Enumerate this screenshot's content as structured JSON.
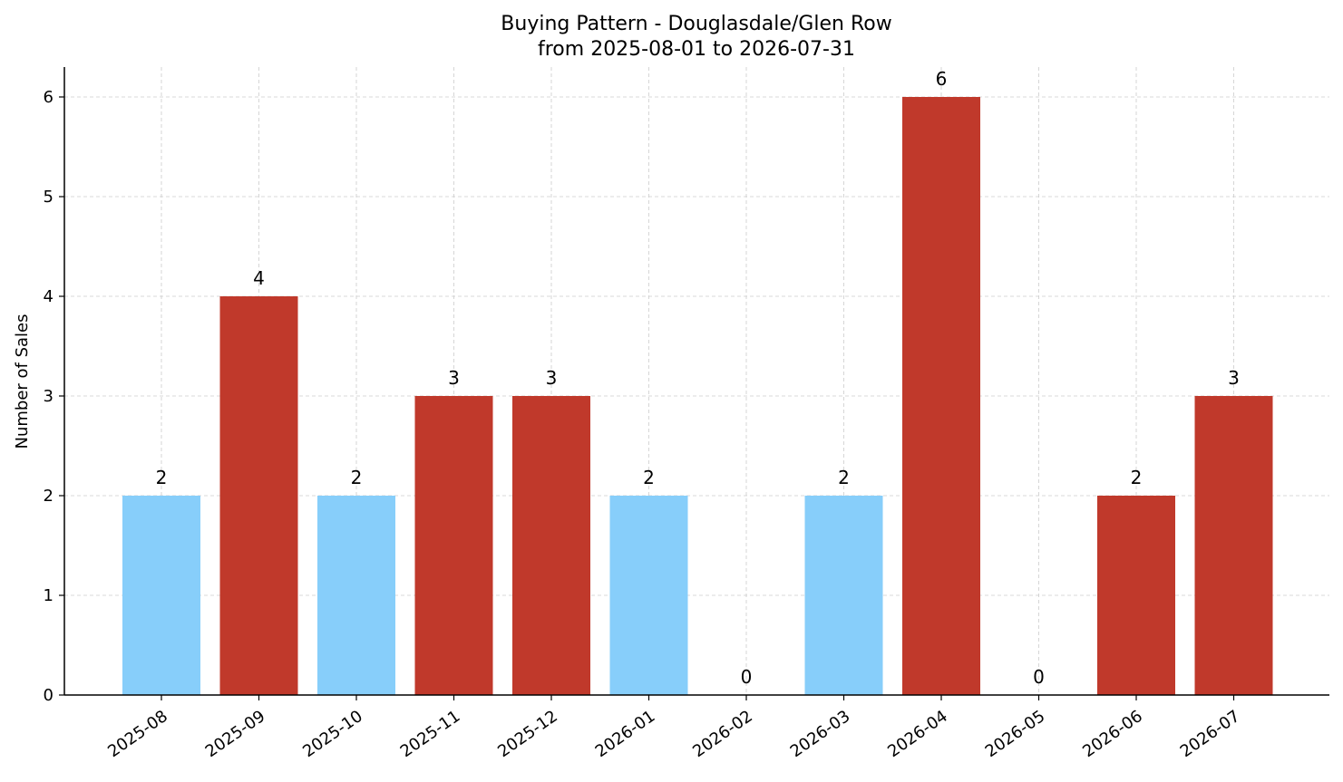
{
  "chart_data": {
    "type": "bar",
    "title_line1": "Buying Pattern - Douglasdale/Glen Row",
    "title_line2": "from 2025-08-01 to 2026-07-31",
    "xlabel": "",
    "ylabel": "Number of Sales",
    "ylim": [
      0,
      6.3
    ],
    "yticks": [
      0,
      1,
      2,
      3,
      4,
      5,
      6
    ],
    "grid": true,
    "categories": [
      "2025-08",
      "2025-09",
      "2025-10",
      "2025-11",
      "2025-12",
      "2026-01",
      "2026-02",
      "2026-03",
      "2026-04",
      "2026-05",
      "2026-06",
      "2026-07"
    ],
    "values": [
      2,
      4,
      2,
      3,
      3,
      2,
      0,
      2,
      6,
      0,
      2,
      3
    ],
    "bar_colors": [
      "#87cefa",
      "#c0392b",
      "#87cefa",
      "#c0392b",
      "#c0392b",
      "#87cefa",
      "#87cefa",
      "#87cefa",
      "#c0392b",
      "#c0392b",
      "#c0392b",
      "#c0392b"
    ]
  }
}
